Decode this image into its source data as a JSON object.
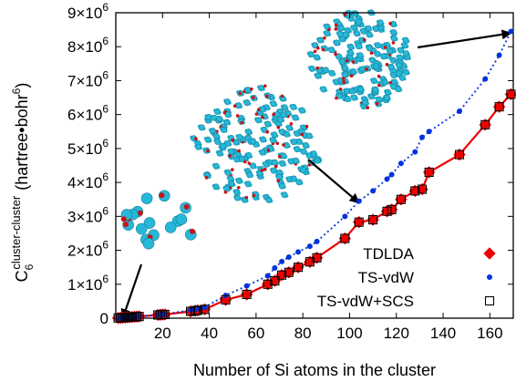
{
  "chart_data": {
    "type": "line",
    "xlabel": "Number of Si atoms in the cluster",
    "ylabel": {
      "symbol": "C",
      "subscript": "6",
      "superscript": "cluster-cluster",
      "units_prefix": "(hartree•bohr",
      "units_exponent": "6",
      "units_suffix": ")"
    },
    "xlim": [
      0,
      170
    ],
    "ylim": [
      0,
      9000000
    ],
    "xticks": [
      20,
      40,
      60,
      80,
      100,
      120,
      140,
      160
    ],
    "yticks": [
      {
        "value": 0,
        "mantissa": "0",
        "exp": ""
      },
      {
        "value": 1000000,
        "mantissa": "1×10",
        "exp": "6"
      },
      {
        "value": 2000000,
        "mantissa": "2×10",
        "exp": "6"
      },
      {
        "value": 3000000,
        "mantissa": "3×10",
        "exp": "6"
      },
      {
        "value": 4000000,
        "mantissa": "4×10",
        "exp": "6"
      },
      {
        "value": 5000000,
        "mantissa": "5×10",
        "exp": "6"
      },
      {
        "value": 6000000,
        "mantissa": "6×10",
        "exp": "6"
      },
      {
        "value": 7000000,
        "mantissa": "7×10",
        "exp": "6"
      },
      {
        "value": 8000000,
        "mantissa": "8×10",
        "exp": "6"
      },
      {
        "value": 9000000,
        "mantissa": "9×10",
        "exp": "6"
      }
    ],
    "grid": false,
    "legend_position": "bottom-right",
    "series": [
      {
        "name": "TDLDA",
        "marker": "diamond",
        "color": "#ee0000",
        "line": "solid",
        "x": [
          1,
          2,
          3,
          4,
          5,
          6,
          7,
          8,
          9,
          10,
          18,
          19,
          20,
          21,
          32,
          34,
          35,
          38,
          47,
          56,
          65,
          68,
          71,
          74,
          78,
          83,
          86,
          98,
          104,
          110,
          116,
          118,
          122,
          128,
          131,
          134,
          147,
          158,
          164,
          169
        ],
        "y": [
          5000,
          10000,
          15000,
          20000,
          25000,
          30000,
          35000,
          40000,
          45000,
          50000,
          95000,
          100000,
          105000,
          110000,
          200000,
          220000,
          230000,
          260000,
          540000,
          700000,
          1000000,
          1100000,
          1270000,
          1350000,
          1500000,
          1660000,
          1780000,
          2350000,
          2830000,
          2900000,
          3150000,
          3200000,
          3500000,
          3750000,
          3800000,
          4300000,
          4820000,
          5700000,
          6230000,
          6600000
        ]
      },
      {
        "name": "TS-vdW",
        "marker": "circle",
        "color": "#0033dd",
        "line": "dotted",
        "x": [
          1,
          2,
          3,
          4,
          5,
          6,
          7,
          8,
          9,
          10,
          18,
          19,
          20,
          21,
          32,
          34,
          35,
          38,
          47,
          56,
          65,
          68,
          71,
          74,
          78,
          83,
          86,
          98,
          104,
          110,
          116,
          118,
          122,
          128,
          131,
          134,
          147,
          158,
          164,
          169
        ],
        "y": [
          5000,
          10000,
          15000,
          20000,
          25000,
          30000,
          35000,
          40000,
          45000,
          50000,
          100000,
          105000,
          110000,
          115000,
          240000,
          260000,
          290000,
          320000,
          670000,
          950000,
          1250000,
          1480000,
          1670000,
          1800000,
          1950000,
          2120000,
          2260000,
          3000000,
          3450000,
          3750000,
          4100000,
          4230000,
          4560000,
          4900000,
          5330000,
          5500000,
          6100000,
          7050000,
          7750000,
          8450000
        ]
      },
      {
        "name": "TS-vdW+SCS",
        "marker": "square-open",
        "color": "#000000",
        "line": "none",
        "x": [
          1,
          2,
          3,
          4,
          5,
          6,
          7,
          8,
          9,
          10,
          18,
          19,
          20,
          21,
          32,
          34,
          35,
          38,
          47,
          56,
          65,
          68,
          71,
          74,
          78,
          83,
          86,
          98,
          104,
          110,
          116,
          118,
          122,
          128,
          131,
          134,
          147,
          158,
          164,
          169
        ],
        "y": [
          5000,
          10000,
          15000,
          20000,
          25000,
          30000,
          35000,
          40000,
          45000,
          50000,
          95000,
          100000,
          105000,
          110000,
          200000,
          220000,
          230000,
          260000,
          540000,
          700000,
          1000000,
          1100000,
          1270000,
          1350000,
          1500000,
          1660000,
          1780000,
          2350000,
          2830000,
          2900000,
          3150000,
          3200000,
          3500000,
          3750000,
          3800000,
          4300000,
          4820000,
          5700000,
          6230000,
          6600000
        ]
      }
    ]
  },
  "insets": [
    {
      "name": "small-cluster-image",
      "color": "#26b8d8",
      "arrow_to": {
        "x": 3,
        "y": 0
      }
    },
    {
      "name": "medium-cluster-image",
      "color": "#26b8d8",
      "arrow_to": {
        "x": 104,
        "y": 3400000
      }
    },
    {
      "name": "large-cluster-image",
      "color": "#26b8d8",
      "arrow_to": {
        "x": 169,
        "y": 8400000
      }
    }
  ]
}
